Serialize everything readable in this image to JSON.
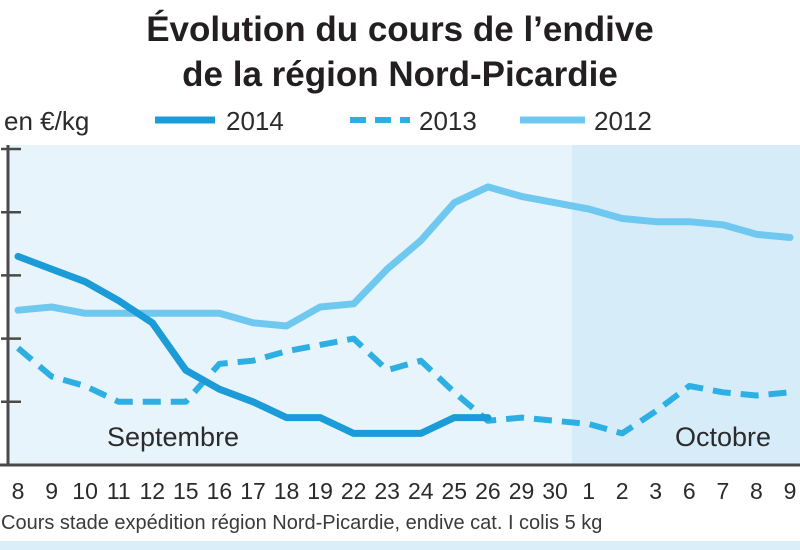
{
  "colors": {
    "september_bg": "#e8f4fb",
    "october_bg": "#d6edf9",
    "bottom_band": "#d9eef9"
  },
  "chart_data": {
    "type": "line",
    "title": [
      "Évolution du cours de l’endive",
      "de la région Nord-Picardie"
    ],
    "ylabel": "en €/kg",
    "xlabel": "",
    "ylim": [
      0,
      5
    ],
    "grid": false,
    "legend": "top",
    "categories": [
      "8",
      "9",
      "10",
      "11",
      "12",
      "15",
      "16",
      "17",
      "18",
      "19",
      "22",
      "23",
      "24",
      "25",
      "26",
      "29",
      "30",
      "1",
      "2",
      "3",
      "6",
      "7",
      "8",
      "9"
    ],
    "months": [
      "Septembre",
      "Octobre"
    ],
    "series": [
      {
        "name": "2014",
        "dashed": false,
        "color": "#1b9cd8",
        "values": [
          3.3,
          3.1,
          2.9,
          2.6,
          2.25,
          1.5,
          1.2,
          1.0,
          0.75,
          0.75,
          0.5,
          0.5,
          0.5,
          0.75,
          0.75,
          null,
          null,
          null,
          null,
          null,
          null,
          null,
          null,
          null
        ]
      },
      {
        "name": "2013",
        "dashed": true,
        "color": "#2dafe3",
        "values": [
          1.85,
          1.4,
          1.25,
          1.0,
          1.0,
          1.0,
          1.6,
          1.65,
          1.8,
          1.9,
          2.0,
          1.5,
          1.65,
          1.15,
          0.7,
          0.75,
          0.7,
          0.65,
          0.5,
          0.85,
          1.25,
          1.15,
          1.1,
          1.15
        ]
      },
      {
        "name": "2012",
        "dashed": false,
        "color": "#6fc8ef",
        "values": [
          2.45,
          2.5,
          2.4,
          2.4,
          2.4,
          2.4,
          2.4,
          2.25,
          2.2,
          2.5,
          2.55,
          3.1,
          3.55,
          4.15,
          4.4,
          4.25,
          4.15,
          4.05,
          3.9,
          3.85,
          3.85,
          3.8,
          3.65,
          3.6
        ]
      }
    ],
    "footnote": "Cours stade expédition région Nord-Picardie, endive cat. I colis 5 kg"
  }
}
